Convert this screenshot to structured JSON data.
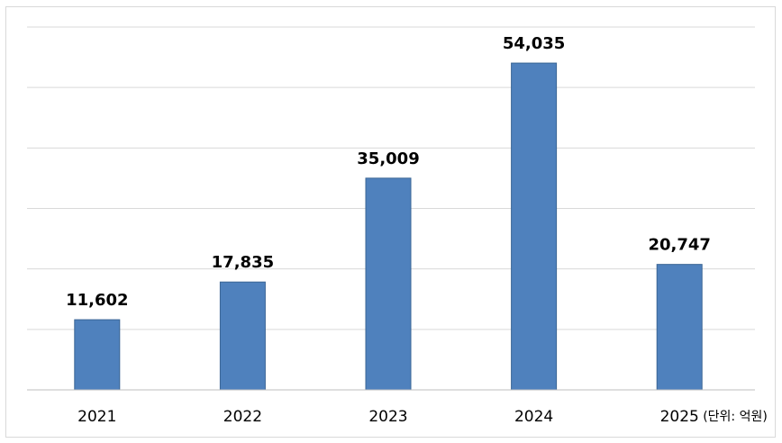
{
  "chart_data": {
    "type": "bar",
    "title": "",
    "xlabel": "",
    "ylabel": "",
    "unit_note": "(단위: 억원)",
    "categories": [
      "2021",
      "2022",
      "2023",
      "2024",
      "2025"
    ],
    "values": [
      11602,
      17835,
      35009,
      54035,
      20747
    ],
    "value_labels": [
      "11,602",
      "17,835",
      "35,009",
      "54,035",
      "20,747"
    ],
    "ylim": [
      0,
      60000
    ],
    "y_gridline_step": 10000,
    "grid": true,
    "legend": "none",
    "colors": {
      "bar": "#4f81bd",
      "bar_border": "#3a6595",
      "gridline": "#d9d9d9",
      "axis": "#bfbfbf",
      "frame": "#d9d9d9"
    }
  }
}
